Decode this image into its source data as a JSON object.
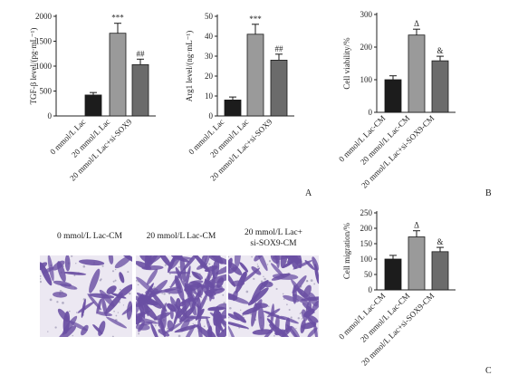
{
  "chart_data": [
    {
      "type": "bar",
      "ylabel": "TGF-β level/(pg·mL⁻¹)",
      "yticks": [
        0,
        500,
        1000,
        1500,
        2000
      ],
      "ylim": [
        0,
        2000
      ],
      "categories": [
        "0 mmol/L Lac",
        "20 mmol/L Lac",
        "20 mmol/L Lac+si-SOX9"
      ],
      "values": [
        420,
        1660,
        1030
      ],
      "errors": [
        50,
        200,
        110
      ],
      "annotations": [
        "",
        "***",
        "##"
      ],
      "bar_colors": [
        "#1c1c1c",
        "#9a9a9a",
        "#6b6b6b"
      ]
    },
    {
      "type": "bar",
      "ylabel": "Arg1 level/(ng·mL⁻¹)",
      "yticks": [
        0,
        10,
        20,
        30,
        40,
        50
      ],
      "ylim": [
        0,
        50
      ],
      "categories": [
        "0 mmol/L Lac",
        "20 mmol/L Lac",
        "20 mmol/L Lac+si-SOX9"
      ],
      "values": [
        8,
        41,
        28
      ],
      "errors": [
        1.5,
        5,
        3
      ],
      "annotations": [
        "",
        "***",
        "##"
      ],
      "bar_colors": [
        "#1c1c1c",
        "#9a9a9a",
        "#6b6b6b"
      ]
    },
    {
      "type": "bar",
      "ylabel": "Cell viability/%",
      "yticks": [
        0,
        100,
        200,
        300
      ],
      "ylim": [
        0,
        300
      ],
      "categories": [
        "0 mmol/L Lac-CM",
        "20 mmol/L Lac-CM",
        "20 mmol/L Lac+si-SOX9-CM"
      ],
      "values": [
        100,
        237,
        158
      ],
      "errors": [
        12,
        18,
        14
      ],
      "annotations": [
        "",
        "Δ",
        "&"
      ],
      "bar_colors": [
        "#1c1c1c",
        "#9a9a9a",
        "#6b6b6b"
      ]
    },
    {
      "type": "bar",
      "ylabel": "Cell migration/%",
      "yticks": [
        0,
        50,
        100,
        150,
        200,
        250
      ],
      "ylim": [
        0,
        250
      ],
      "categories": [
        "0 mmol/L Lac-CM",
        "20 mmol/L Lac-CM",
        "20 mmol/L Lac+si-SOX9-CM"
      ],
      "values": [
        100,
        172,
        124
      ],
      "errors": [
        12,
        20,
        14
      ],
      "annotations": [
        "",
        "Δ",
        "&"
      ],
      "bar_colors": [
        "#1c1c1c",
        "#9a9a9a",
        "#6b6b6b"
      ]
    }
  ],
  "images": {
    "titles": [
      "0 mmol/L Lac-CM",
      "20 mmol/L Lac-CM",
      "20 mmol/L Lac+\nsi-SOX9-CM"
    ],
    "cell_density": [
      40,
      130,
      80
    ],
    "stain_color": "#6a4fa3",
    "background_color": "#ece8f2"
  },
  "panel_labels": [
    "A",
    "B",
    "C"
  ]
}
